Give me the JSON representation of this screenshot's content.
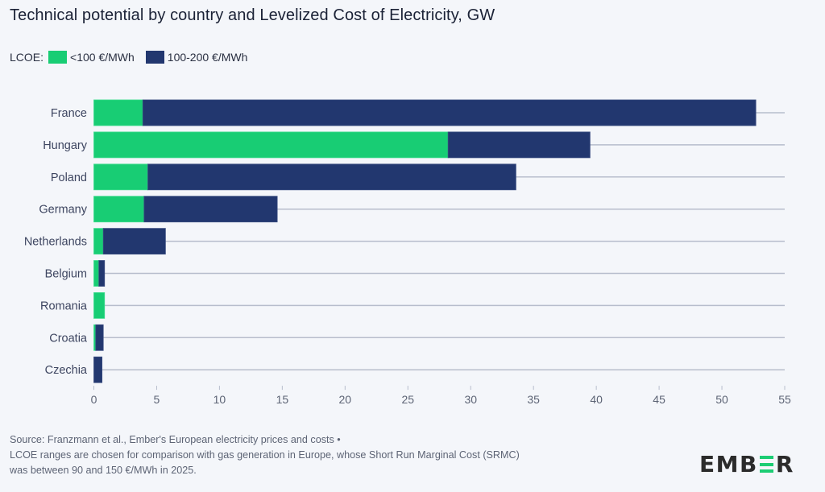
{
  "title": "Technical potential by country and Levelized Cost of Electricity, GW",
  "legend": {
    "label": "LCOE:",
    "items": [
      {
        "label": "<100 €/MWh",
        "color": "#18cd74"
      },
      {
        "label": "100-200 €/MWh",
        "color": "#22376f"
      }
    ]
  },
  "chart_data": {
    "type": "bar",
    "orientation": "horizontal",
    "stacked": true,
    "title": "Technical potential by country and Levelized Cost of Electricity, GW",
    "xlabel": "",
    "ylabel": "",
    "xlim": [
      0,
      55
    ],
    "x_ticks": [
      0,
      5,
      10,
      15,
      20,
      25,
      30,
      35,
      40,
      45,
      50,
      55
    ],
    "grid": true,
    "legend_position": "top-left",
    "categories": [
      "France",
      "Hungary",
      "Poland",
      "Germany",
      "Netherlands",
      "Belgium",
      "Romania",
      "Croatia",
      "Czechia"
    ],
    "series": [
      {
        "name": "<100 €/MWh",
        "color": "#18cd74",
        "values": [
          3.9,
          28.2,
          4.3,
          4.0,
          0.75,
          0.4,
          0.85,
          0.15,
          0.0
        ]
      },
      {
        "name": "100-200 €/MWh",
        "color": "#22376f",
        "values": [
          48.8,
          11.3,
          29.3,
          10.6,
          4.95,
          0.45,
          0.0,
          0.6,
          0.65
        ]
      }
    ]
  },
  "footer": {
    "line1": "Source: Franzmann et al., Ember's European electricity prices and costs •",
    "line2": "LCOE ranges are chosen for comparison with gas generation in Europe, whose Short Run Marginal Cost (SRMC)",
    "line3": "was between 90 and 150 €/MWh in 2025."
  },
  "logo": {
    "part1": "EMB",
    "part2": "R"
  }
}
